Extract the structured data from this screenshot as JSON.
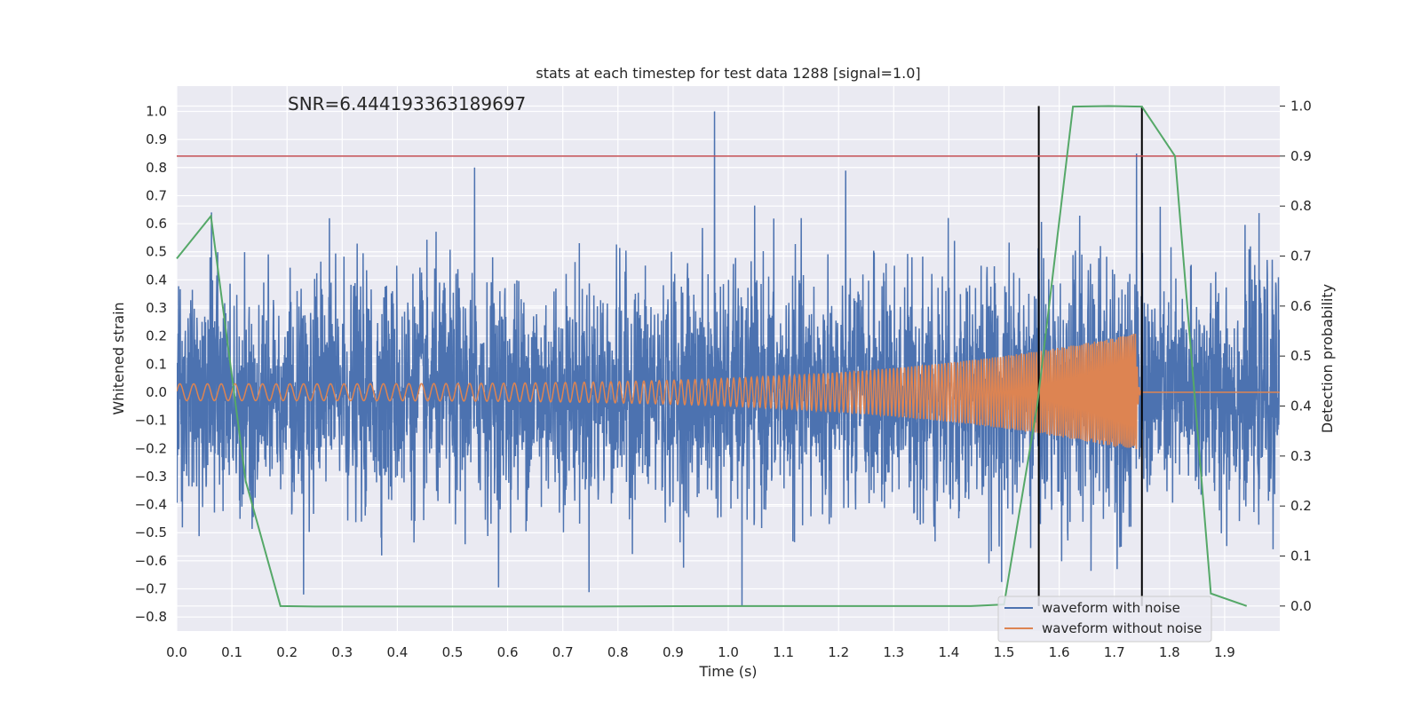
{
  "chart_data": {
    "type": "line",
    "title": "stats at each timestep for test data 1288 [signal=1.0]",
    "annotation": "SNR=6.444193363189697",
    "xlabel": "Time (s)",
    "ylabel": "Whitened strain",
    "y2label": "Detection probability",
    "xlim": [
      0.0,
      2.0
    ],
    "ylim": [
      -0.85,
      1.09
    ],
    "y2lim": [
      -0.05,
      1.04
    ],
    "x_ticks": [
      "0.0",
      "0.1",
      "0.2",
      "0.3",
      "0.4",
      "0.5",
      "0.6",
      "0.7",
      "0.8",
      "0.9",
      "1.0",
      "1.1",
      "1.2",
      "1.3",
      "1.4",
      "1.5",
      "1.6",
      "1.7",
      "1.8",
      "1.9"
    ],
    "y_ticks": [
      "1.0",
      "0.9",
      "0.8",
      "0.7",
      "0.6",
      "0.5",
      "0.4",
      "0.3",
      "0.2",
      "0.1",
      "0.0",
      "−0.1",
      "−0.2",
      "−0.3",
      "−0.4",
      "−0.5",
      "−0.6",
      "−0.7",
      "−0.8"
    ],
    "y2_ticks": [
      "1.0",
      "0.9",
      "0.8",
      "0.7",
      "0.6",
      "0.5",
      "0.4",
      "0.3",
      "0.2",
      "0.1",
      "0.0"
    ],
    "grid": true,
    "legend": "bottom-right",
    "series": [
      {
        "name": "waveform with noise",
        "color": "#4c72b0",
        "axis": "left",
        "noise_amplitude": 0.2,
        "notable_points": [
          [
            0.975,
            1.0
          ],
          [
            0.54,
            0.8
          ],
          [
            1.025,
            -0.76
          ],
          [
            0.23,
            -0.72
          ],
          [
            1.74,
            0.85
          ],
          [
            0.063,
            0.64
          ]
        ]
      },
      {
        "name": "waveform without noise",
        "color": "#dd8452",
        "axis": "left",
        "chirp": {
          "t_start": 0.0,
          "t_merge": 1.74,
          "t_ringdown_end": 1.75,
          "amp_start": 0.03,
          "amp_peak": 0.21,
          "freq_start_hz": 40,
          "freq_end_hz": 300
        }
      },
      {
        "color": "#55a868",
        "axis": "right",
        "x": [
          0.0,
          0.062,
          0.125,
          0.188,
          0.25,
          0.5,
          0.75,
          1.0,
          1.25,
          1.44,
          1.5,
          1.56,
          1.625,
          1.69,
          1.75,
          1.81,
          1.875,
          1.94
        ],
        "values": [
          0.695,
          0.78,
          0.25,
          0.0,
          -0.001,
          -0.001,
          -0.001,
          0.0,
          0.0,
          0.0,
          0.003,
          0.4,
          0.999,
          1.0,
          0.999,
          0.9,
          0.025,
          0.0
        ]
      }
    ],
    "threshold_line": {
      "y2": 0.9,
      "color": "#c44e52"
    },
    "vertical_markers": {
      "x": [
        1.563,
        1.75
      ],
      "color": "#000000"
    }
  }
}
